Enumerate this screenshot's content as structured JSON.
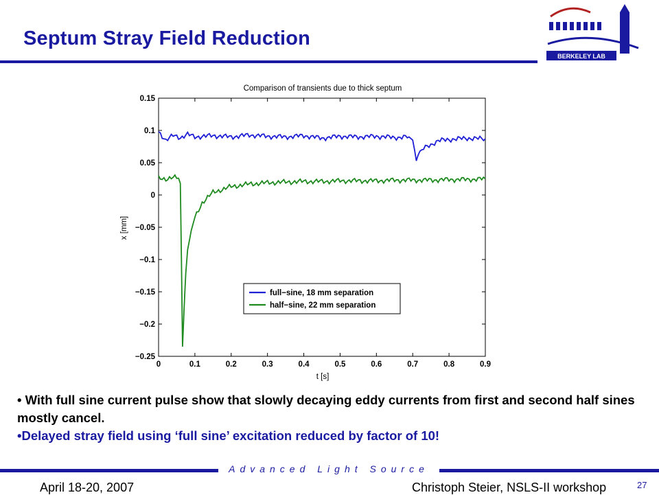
{
  "slide": {
    "title": "Septum Stray Field Reduction",
    "bullet1": "• With full sine current pulse show that slowly decaying eddy currents from first and second half sines mostly cancel.",
    "bullet2": "•Delayed stray field using ‘full sine’ excitation reduced by factor of 10!",
    "footer_center": "Advanced Light Source",
    "footer_date": "April 18-20, 2007",
    "footer_author": "Christoph Steier, NSLS-II workshop",
    "page_number": "27",
    "logo_text": "BERKELEY LAB",
    "colors": {
      "title": "#1a1aa0",
      "rule": "#1a1aa0",
      "logo_red": "#b22222"
    }
  },
  "chart_data": {
    "type": "line",
    "title": "Comparison of transients due to thick septum",
    "xlabel": "t [s]",
    "ylabel": "x [mm]",
    "xlim": [
      0,
      0.9
    ],
    "ylim": [
      -0.25,
      0.15
    ],
    "xticks": [
      "0",
      "0.1",
      "0.2",
      "0.3",
      "0.4",
      "0.5",
      "0.6",
      "0.7",
      "0.8",
      "0.9"
    ],
    "yticks": [
      "0.15",
      "0.1",
      "0.05",
      "0",
      "−0.05",
      "−0.1",
      "−0.15",
      "−0.2",
      "−0.25"
    ],
    "legend_position": "lower-right inside",
    "series": [
      {
        "name": "full−sine, 18 mm separation",
        "color": "#1f1fd6",
        "x": [
          0,
          0.02,
          0.04,
          0.06,
          0.08,
          0.1,
          0.15,
          0.2,
          0.25,
          0.3,
          0.35,
          0.4,
          0.45,
          0.5,
          0.55,
          0.6,
          0.65,
          0.69,
          0.7,
          0.705,
          0.71,
          0.715,
          0.72,
          0.73,
          0.75,
          0.77,
          0.8,
          0.85,
          0.9
        ],
        "y": [
          0.098,
          0.085,
          0.092,
          0.089,
          0.094,
          0.09,
          0.092,
          0.09,
          0.093,
          0.091,
          0.09,
          0.092,
          0.088,
          0.091,
          0.09,
          0.091,
          0.089,
          0.09,
          0.085,
          0.07,
          0.053,
          0.062,
          0.068,
          0.072,
          0.078,
          0.084,
          0.086,
          0.088,
          0.087
        ]
      },
      {
        "name": "half−sine, 22 mm separation",
        "color": "#1f8a1f",
        "x": [
          0,
          0.02,
          0.04,
          0.055,
          0.06,
          0.063,
          0.066,
          0.07,
          0.075,
          0.08,
          0.09,
          0.1,
          0.12,
          0.15,
          0.2,
          0.25,
          0.3,
          0.35,
          0.4,
          0.45,
          0.5,
          0.55,
          0.6,
          0.65,
          0.7,
          0.75,
          0.8,
          0.85,
          0.9
        ],
        "y": [
          0.026,
          0.025,
          0.027,
          0.026,
          0.018,
          -0.1,
          -0.235,
          -0.18,
          -0.12,
          -0.085,
          -0.055,
          -0.035,
          -0.012,
          0.004,
          0.013,
          0.017,
          0.019,
          0.02,
          0.021,
          0.021,
          0.022,
          0.022,
          0.022,
          0.023,
          0.023,
          0.023,
          0.024,
          0.024,
          0.025
        ]
      }
    ]
  }
}
